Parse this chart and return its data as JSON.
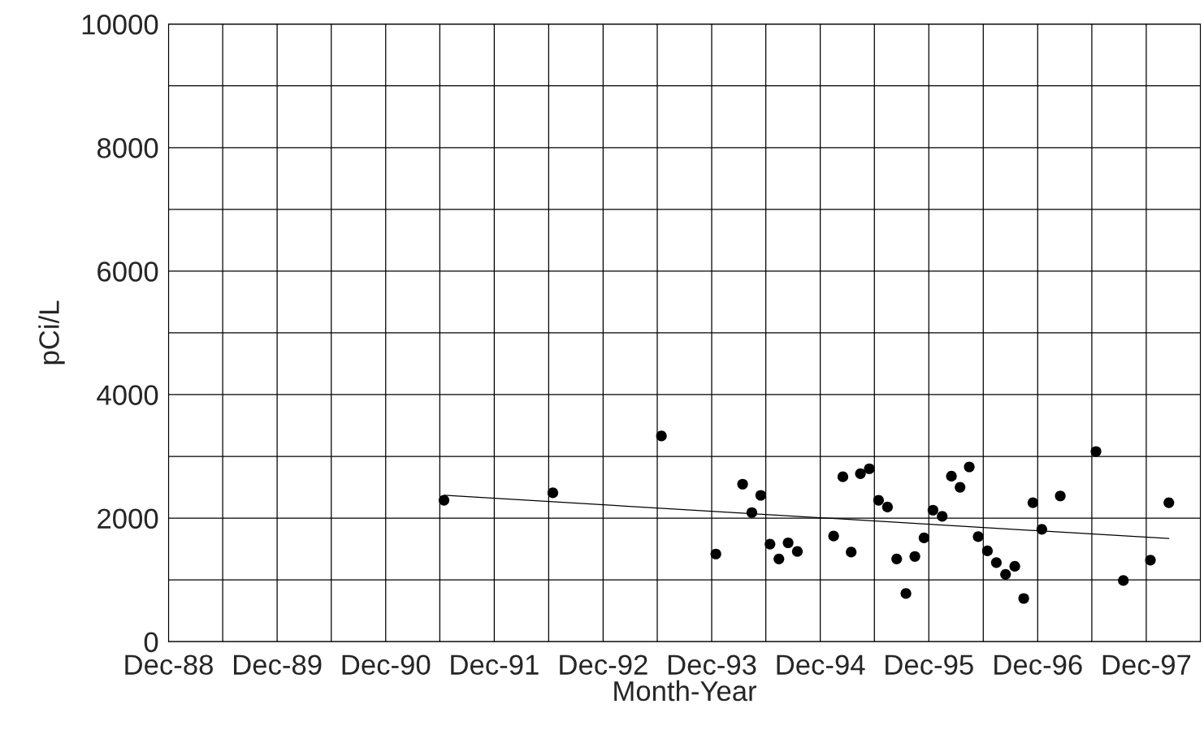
{
  "chart_data": {
    "type": "scatter",
    "xlabel": "Month-Year",
    "ylabel": "pCi/L",
    "series": [
      {
        "color": "#000000",
        "marker": "circle",
        "x": [
          "1991-06-15",
          "1992-06-15",
          "1993-06-15",
          "1993-12-15",
          "1994-03-15",
          "1994-04-15",
          "1994-05-15",
          "1994-06-15",
          "1994-07-15",
          "1994-08-15",
          "1994-09-15",
          "1995-01-15",
          "1995-02-15",
          "1995-03-15",
          "1995-04-15",
          "1995-05-15",
          "1995-06-15",
          "1995-07-15",
          "1995-08-15",
          "1995-09-15",
          "1995-10-15",
          "1995-11-15",
          "1995-12-15",
          "1996-01-15",
          "1996-02-15",
          "1996-03-15",
          "1996-04-15",
          "1996-05-15",
          "1996-06-15",
          "1996-07-15",
          "1996-08-15",
          "1996-09-15",
          "1996-10-15",
          "1996-11-15",
          "1996-12-15",
          "1997-02-15",
          "1997-06-15",
          "1997-09-15",
          "1997-12-15",
          "1998-02-15"
        ],
        "values": [
          2290,
          2410,
          3330,
          1420,
          2550,
          2090,
          2370,
          1580,
          1340,
          1600,
          1460,
          1710,
          2670,
          1450,
          2720,
          2800,
          2290,
          2180,
          1340,
          780,
          1380,
          1680,
          2130,
          2030,
          2680,
          2500,
          2830,
          1700,
          1470,
          1280,
          1090,
          1220,
          700,
          2250,
          1820,
          2360,
          3080,
          990,
          1320,
          2250
        ]
      },
      {
        "type": "line",
        "color": "#000000",
        "marker": "none",
        "line_style": "solid",
        "x": [
          "1991-06-15",
          "1998-02-15"
        ],
        "values": [
          2370,
          1670
        ]
      }
    ],
    "xlim": [
      "1988-12-01",
      "1998-06-01"
    ],
    "xticks": [
      {
        "value": "1988-12-01",
        "label": "Dec-88"
      },
      {
        "value": "1989-06-01",
        "label": null
      },
      {
        "value": "1989-12-01",
        "label": "Dec-89"
      },
      {
        "value": "1990-06-01",
        "label": null
      },
      {
        "value": "1990-12-01",
        "label": "Dec-90"
      },
      {
        "value": "1991-06-01",
        "label": null
      },
      {
        "value": "1991-12-01",
        "label": "Dec-91"
      },
      {
        "value": "1992-06-01",
        "label": null
      },
      {
        "value": "1992-12-01",
        "label": "Dec-92"
      },
      {
        "value": "1993-06-01",
        "label": null
      },
      {
        "value": "1993-12-01",
        "label": "Dec-93"
      },
      {
        "value": "1994-06-01",
        "label": null
      },
      {
        "value": "1994-12-01",
        "label": "Dec-94"
      },
      {
        "value": "1995-06-01",
        "label": null
      },
      {
        "value": "1995-12-01",
        "label": "Dec-95"
      },
      {
        "value": "1996-06-01",
        "label": null
      },
      {
        "value": "1996-12-01",
        "label": "Dec-96"
      },
      {
        "value": "1997-06-01",
        "label": null
      },
      {
        "value": "1997-12-01",
        "label": "Dec-97"
      },
      {
        "value": "1998-06-01",
        "label": null
      }
    ],
    "ylim": [
      0,
      10000
    ],
    "yticks": [
      0,
      {
        "value": 1000,
        "label": null
      },
      2000,
      {
        "value": 3000,
        "label": null
      },
      4000,
      {
        "value": 5000,
        "label": null
      },
      6000,
      {
        "value": 7000,
        "label": null
      },
      8000,
      {
        "value": 9000,
        "label": null
      },
      10000
    ],
    "grid": true,
    "legend": false
  }
}
